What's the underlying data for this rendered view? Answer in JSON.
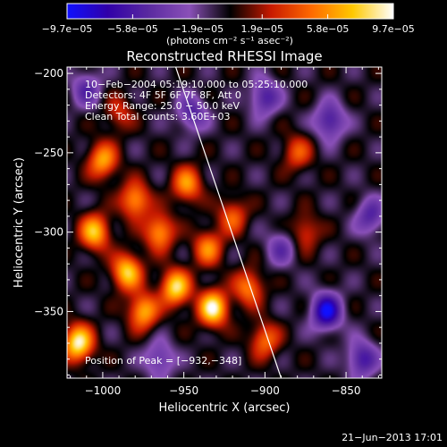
{
  "chart_data": {
    "type": "heatmap",
    "title": "Reconstructed RHESSI Image",
    "xlabel": "Heliocentric X (arcsec)",
    "ylabel": "Heliocentric Y (arcsec)",
    "xlim": [
      -1022,
      -828
    ],
    "ylim": [
      -392,
      -196
    ],
    "x_ticks": [
      -1000,
      -950,
      -900,
      -850
    ],
    "x_tick_labels": [
      "−1000",
      "−950",
      "−900",
      "−850"
    ],
    "y_ticks": [
      -200,
      -250,
      -300,
      -350
    ],
    "y_tick_labels": [
      "−200",
      "−250",
      "−300",
      "−350"
    ],
    "colorbar": {
      "min": -9.7e-05,
      "max": 9.7e-05,
      "ticks": [
        -9.7e-05,
        -5.8e-05,
        -1.9e-05,
        1.9e-05,
        5.8e-05,
        9.7e-05
      ],
      "tick_labels": [
        "−9.7e−05",
        "−5.8e−05",
        "−1.9e−05",
        "1.9e−05",
        "5.8e−05",
        "9.7e−05"
      ],
      "unit_label": "(photons cm⁻² s⁻¹ asec⁻²)",
      "colors": [
        "#1010ff",
        "#3000a8",
        "#5a2aa0",
        "#8a50b8",
        "#000000",
        "#c81a00",
        "#ff6a00",
        "#ffc800",
        "#ffffff"
      ]
    },
    "annotations": [
      "10−Feb−2004 05:19:10.000 to 05:25:10.000",
      "Detectors: 4F 5F 6F 7F 8F, Att 0",
      "Energy Range: 25.0 − 50.0 keV",
      "Clean     Total counts: 3.60E+03"
    ],
    "peak_label": "Position of Peak = [−932,−348]",
    "limb_line": [
      [
        -955,
        -196
      ],
      [
        -890,
        -392
      ]
    ],
    "sources": [
      {
        "x": -1015,
        "y": -370,
        "amp": 1.0
      },
      {
        "x": -1005,
        "y": -300,
        "amp": 0.8
      },
      {
        "x": -1000,
        "y": -255,
        "amp": 0.7
      },
      {
        "x": -985,
        "y": -325,
        "amp": 0.85
      },
      {
        "x": -980,
        "y": -280,
        "amp": 0.7
      },
      {
        "x": -975,
        "y": -350,
        "amp": 0.75
      },
      {
        "x": -965,
        "y": -300,
        "amp": 0.7
      },
      {
        "x": -955,
        "y": -335,
        "amp": 0.9
      },
      {
        "x": -948,
        "y": -270,
        "amp": 0.65
      },
      {
        "x": -932,
        "y": -348,
        "amp": 1.0
      },
      {
        "x": -935,
        "y": -310,
        "amp": 0.6
      },
      {
        "x": -920,
        "y": -290,
        "amp": 0.5
      },
      {
        "x": -910,
        "y": -335,
        "amp": 0.6
      },
      {
        "x": -900,
        "y": -368,
        "amp": 0.55
      },
      {
        "x": -880,
        "y": -250,
        "amp": 0.45
      },
      {
        "x": -875,
        "y": -300,
        "amp": 0.4
      },
      {
        "x": -990,
        "y": -225,
        "amp": 0.35
      },
      {
        "x": -1010,
        "y": -210,
        "amp": -0.45
      },
      {
        "x": -945,
        "y": -225,
        "amp": -0.5
      },
      {
        "x": -900,
        "y": -215,
        "amp": -0.55
      },
      {
        "x": -860,
        "y": -230,
        "amp": -0.6
      },
      {
        "x": -890,
        "y": -310,
        "amp": -0.4
      },
      {
        "x": -862,
        "y": -350,
        "amp": -0.9
      },
      {
        "x": -840,
        "y": -380,
        "amp": -0.6
      },
      {
        "x": -965,
        "y": -380,
        "amp": -0.45
      },
      {
        "x": -835,
        "y": -290,
        "amp": -0.5
      }
    ]
  },
  "footer": {
    "timestamp": "21−Jun−2013 17:01"
  }
}
